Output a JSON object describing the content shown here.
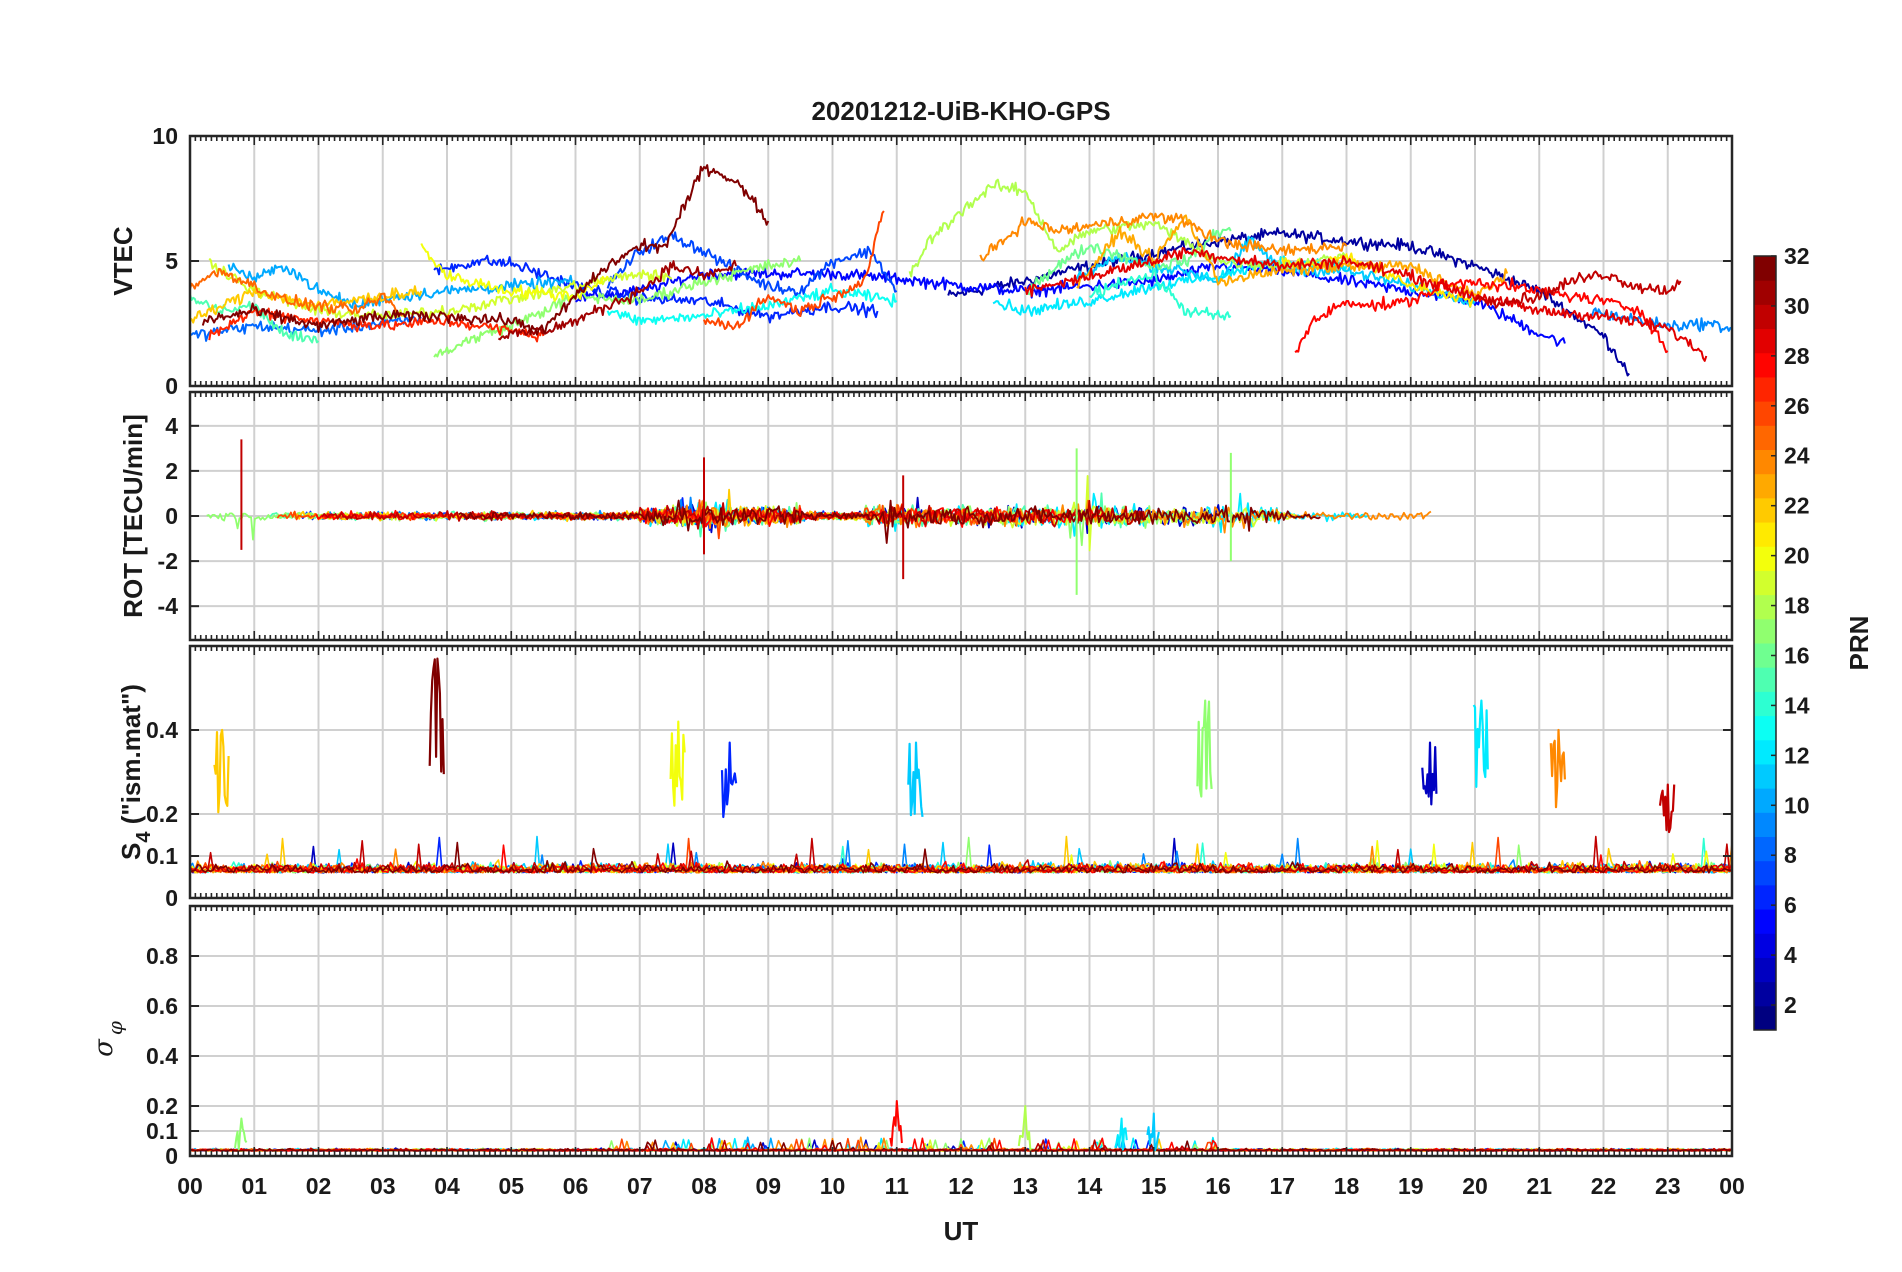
{
  "chart_data": {
    "type": "line",
    "title": "20201212-UiB-KHO-GPS",
    "xlabel": "UT",
    "x_ticks": [
      "00",
      "01",
      "02",
      "03",
      "04",
      "05",
      "06",
      "07",
      "08",
      "09",
      "10",
      "11",
      "12",
      "13",
      "14",
      "15",
      "16",
      "17",
      "18",
      "19",
      "20",
      "21",
      "22",
      "23",
      "00"
    ],
    "x_range_hours": [
      0,
      24
    ],
    "grid": true,
    "panels": [
      {
        "id": "vtec",
        "ylabel": "VTEC",
        "ylim": [
          0,
          10
        ],
        "yticks": [
          0,
          5,
          10
        ],
        "ytick_labels": [
          "0",
          "5",
          "10"
        ],
        "series": [
          {
            "prn": 2,
            "hours": [
              11.8,
              13,
              14,
              15,
              16,
              17,
              18,
              19,
              20,
              21,
              22,
              22.4
            ],
            "values": [
              3.6,
              4.2,
              4.8,
              5.3,
              5.8,
              6.1,
              5.8,
              5.6,
              4.8,
              3.8,
              2.0,
              0.5
            ]
          },
          {
            "prn": 5,
            "hours": [
              6.0,
              7,
              8,
              9,
              10,
              11,
              12,
              13,
              14,
              15,
              16,
              17,
              18,
              19,
              20,
              21,
              21.4
            ],
            "values": [
              3.5,
              3.8,
              4.5,
              4.5,
              4.5,
              4.3,
              4.0,
              3.8,
              4.0,
              4.2,
              4.8,
              4.6,
              4.2,
              3.8,
              3.4,
              2.1,
              1.7
            ]
          },
          {
            "prn": 6,
            "hours": [
              3.8,
              4.5,
              5,
              6,
              7,
              8,
              9,
              10,
              10.7
            ],
            "values": [
              4.6,
              5.0,
              4.9,
              4.0,
              3.5,
              3.4,
              2.8,
              3.2,
              3.0
            ]
          },
          {
            "prn": 7,
            "hours": [
              6.5,
              7,
              7.5,
              8,
              8.5,
              9,
              9.5,
              10,
              10.6,
              11
            ],
            "values": [
              4.0,
              5.4,
              6.0,
              5.4,
              4.6,
              4.0,
              3.8,
              5.0,
              5.4,
              3.8
            ]
          },
          {
            "prn": 8,
            "hours": [
              0.0,
              1,
              2,
              3,
              3.6
            ],
            "values": [
              2.0,
              2.4,
              2.2,
              2.5,
              2.7
            ]
          },
          {
            "prn": 9,
            "hours": [
              21.8,
              22,
              23,
              23.6,
              24
            ],
            "values": [
              3.0,
              2.9,
              2.4,
              2.5,
              2.3
            ]
          },
          {
            "prn": 10,
            "hours": [
              0.6,
              1,
              1.5,
              2,
              2.6,
              3,
              4,
              5,
              6
            ],
            "values": [
              4.8,
              4.3,
              4.8,
              3.8,
              3.2,
              3.5,
              3.8,
              4.0,
              4.2
            ]
          },
          {
            "prn": 11,
            "hours": [
              13.8,
              14,
              14.5,
              15,
              15.5,
              16,
              16.5,
              17,
              18,
              19,
              20
            ],
            "values": [
              4.2,
              4.6,
              5.2,
              4.8,
              4.6,
              4.2,
              5.8,
              4.7,
              4.6,
              4.0,
              3.4
            ]
          },
          {
            "prn": 12,
            "hours": [
              12.5,
              13,
              13.5,
              14,
              15,
              16,
              17,
              18
            ],
            "values": [
              3.4,
              3.0,
              3.2,
              3.4,
              4.0,
              4.4,
              5.0,
              4.8
            ]
          },
          {
            "prn": 13,
            "hours": [
              6.5,
              7,
              8,
              9,
              10,
              11
            ],
            "values": [
              3.0,
              2.6,
              2.8,
              3.2,
              3.8,
              3.4
            ]
          },
          {
            "prn": 14,
            "hours": [
              14.0,
              14.5,
              15,
              15.5,
              16,
              16.2
            ],
            "values": [
              3.6,
              4.2,
              4.4,
              3.0,
              2.8,
              2.8
            ]
          },
          {
            "prn": 15,
            "hours": [
              0.0,
              0.5,
              1,
              1.5,
              2
            ],
            "values": [
              3.5,
              3.0,
              3.2,
              2.0,
              1.8
            ]
          },
          {
            "prn": 16,
            "hours": [
              13.0,
              13.5,
              14,
              14.5,
              15,
              15.5,
              16,
              16.2
            ],
            "values": [
              3.8,
              4.8,
              5.6,
              5.2,
              4.8,
              5.0,
              6.2,
              6.2
            ]
          },
          {
            "prn": 17,
            "hours": [
              3.8,
              4.5,
              5,
              5.5,
              6,
              7,
              8,
              9,
              9.5
            ],
            "values": [
              1.2,
              2.0,
              2.4,
              3.0,
              3.6,
              3.4,
              4.2,
              4.8,
              5.0
            ]
          },
          {
            "prn": 18,
            "hours": [
              11.2,
              11.5,
              12,
              12.5,
              13,
              13.5,
              14,
              15,
              16,
              17,
              18
            ],
            "values": [
              4.4,
              5.8,
              7.0,
              8.0,
              7.8,
              5.4,
              6.2,
              6.5,
              5.0,
              4.8,
              5.2
            ]
          },
          {
            "prn": 19,
            "hours": [
              0.3,
              1,
              2,
              3,
              4,
              5,
              6,
              7,
              7.5
            ],
            "values": [
              5.0,
              3.8,
              3.0,
              2.8,
              3.0,
              3.5,
              4.0,
              4.5,
              4.3
            ]
          },
          {
            "prn": 20,
            "hours": [
              3.6,
              4,
              5,
              6,
              6.5
            ],
            "values": [
              5.6,
              4.4,
              3.8,
              3.6,
              4.4
            ]
          },
          {
            "prn": 21,
            "hours": [
              17.0,
              17.5,
              18,
              19,
              20
            ],
            "values": [
              5.0,
              4.8,
              5.2,
              4.0,
              3.4
            ]
          },
          {
            "prn": 22,
            "hours": [
              0.0,
              1,
              2,
              3,
              3.6
            ],
            "values": [
              2.6,
              3.8,
              3.2,
              3.6,
              3.8
            ]
          },
          {
            "prn": 23,
            "hours": [
              13.8,
              14.5,
              15,
              15.5,
              16,
              17,
              18,
              19,
              20,
              20.5
            ],
            "values": [
              4.0,
              6.2,
              5.0,
              6.8,
              4.2,
              4.6,
              4.8,
              4.8,
              3.6,
              4.5
            ]
          },
          {
            "prn": 24,
            "hours": [
              12.3,
              13,
              13.5,
              14,
              15,
              15.5,
              16,
              17,
              18
            ],
            "values": [
              5.0,
              6.6,
              6.2,
              6.4,
              6.8,
              6.6,
              5.8,
              5.4,
              5.6
            ]
          },
          {
            "prn": 25,
            "hours": [
              0.0,
              0.5,
              1,
              1.5,
              2,
              2.6,
              3,
              3.3
            ],
            "values": [
              4.0,
              4.6,
              4.0,
              3.4,
              3.2,
              3.0,
              3.6,
              2.8
            ]
          },
          {
            "prn": 26,
            "hours": [
              8.0,
              8.5,
              9,
              9.5,
              10,
              10.5,
              10.8
            ],
            "values": [
              2.6,
              2.4,
              3.6,
              3.0,
              3.6,
              4.2,
              7.0
            ]
          },
          {
            "prn": 27,
            "hours": [
              0.3,
              1,
              2,
              3,
              4,
              5,
              5.5
            ],
            "values": [
              2.0,
              3.0,
              2.6,
              2.4,
              2.6,
              2.2,
              2.0
            ]
          },
          {
            "prn": 28,
            "hours": [
              17.2,
              17.5,
              18,
              18.5,
              19,
              19.5,
              20,
              21,
              22,
              22.6,
              23
            ],
            "values": [
              1.4,
              2.6,
              3.4,
              3.2,
              3.4,
              4.0,
              4.2,
              3.8,
              3.4,
              3.0,
              1.4
            ]
          },
          {
            "prn": 29,
            "hours": [
              13.0,
              14,
              15,
              15.5,
              16,
              17,
              18,
              19,
              20,
              21,
              22,
              23,
              23.6
            ],
            "values": [
              3.8,
              4.4,
              5.0,
              5.4,
              5.2,
              4.8,
              5.0,
              4.4,
              3.6,
              3.0,
              2.8,
              2.3,
              1.2
            ]
          },
          {
            "prn": 30,
            "hours": [
              20.0,
              20.5,
              21,
              21.5,
              22,
              22.5,
              23,
              23.2
            ],
            "values": [
              3.5,
              3.4,
              3.6,
              4.2,
              4.5,
              4.0,
              3.8,
              4.2
            ]
          },
          {
            "prn": 31,
            "hours": [
              4.8,
              5.5,
              6,
              6.5,
              7,
              7.5,
              8,
              8.5
            ],
            "values": [
              2.0,
              2.2,
              2.6,
              3.2,
              3.8,
              4.8,
              4.4,
              4.8
            ]
          },
          {
            "prn": 32,
            "hours": [
              0.2,
              1,
              2,
              3,
              4,
              5,
              5.5,
              6,
              6.5,
              7,
              7.4,
              8,
              8.5,
              9
            ],
            "values": [
              2.6,
              3.0,
              2.4,
              2.8,
              2.8,
              2.6,
              2.2,
              3.6,
              4.8,
              5.6,
              5.6,
              8.8,
              8.2,
              6.6
            ]
          }
        ]
      },
      {
        "id": "rot",
        "ylabel": "ROT [TECU/min]",
        "ylim": [
          -5.5,
          5.5
        ],
        "yticks": [
          -4,
          -2,
          0,
          2,
          4
        ],
        "ytick_labels": [
          "-4",
          "-2",
          "0",
          "2",
          "4"
        ],
        "description_values": {
          "typical_amplitude": 0.4,
          "max": 3.4,
          "min": -3.5
        },
        "peak_events": [
          {
            "hour": 0.8,
            "min": -1.5,
            "max": 3.4
          },
          {
            "hour": 8.0,
            "min": -1.7,
            "max": 2.6
          },
          {
            "hour": 11.1,
            "min": -2.8,
            "max": 1.8
          },
          {
            "hour": 13.8,
            "min": -3.5,
            "max": 3.0
          },
          {
            "hour": 16.2,
            "min": -2.0,
            "max": 2.8
          }
        ]
      },
      {
        "id": "s4",
        "ylabel_main": "S",
        "ylabel_sub": "4",
        "ylabel_rest": " (\"ism.mat\")",
        "ylim": [
          0,
          0.6
        ],
        "yticks": [
          0,
          0.1,
          0.2,
          0.4
        ],
        "ytick_labels": [
          "0",
          "0.1",
          "0.2",
          "0.4"
        ],
        "baseline": 0.07,
        "peak_events": [
          {
            "hour": 0.5,
            "value": 0.4,
            "prn": 22
          },
          {
            "hour": 3.85,
            "value": 0.57,
            "prn": 32
          },
          {
            "hour": 7.6,
            "value": 0.42,
            "prn": 20
          },
          {
            "hour": 8.4,
            "value": 0.37,
            "prn": 6
          },
          {
            "hour": 11.3,
            "value": 0.37,
            "prn": 11
          },
          {
            "hour": 15.8,
            "value": 0.47,
            "prn": 17
          },
          {
            "hour": 19.3,
            "value": 0.37,
            "prn": 3
          },
          {
            "hour": 20.1,
            "value": 0.47,
            "prn": 12
          },
          {
            "hour": 21.3,
            "value": 0.4,
            "prn": 24
          },
          {
            "hour": 23.0,
            "value": 0.27,
            "prn": 30
          }
        ]
      },
      {
        "id": "sigphi",
        "ylabel_main": "σ",
        "ylabel_sub": "φ",
        "ylim": [
          0,
          1.0
        ],
        "yticks": [
          0,
          0.1,
          0.2,
          0.4,
          0.6,
          0.8
        ],
        "ytick_labels": [
          "0",
          "0.1",
          "0.2",
          "0.4",
          "0.6",
          "0.8"
        ],
        "baseline": 0.02,
        "peak_events": [
          {
            "hour": 0.8,
            "value": 0.15,
            "prn": 17
          },
          {
            "hour": 11.0,
            "value": 0.22,
            "prn": 28
          },
          {
            "hour": 13.0,
            "value": 0.2,
            "prn": 18
          },
          {
            "hour": 14.5,
            "value": 0.15,
            "prn": 12
          },
          {
            "hour": 15.0,
            "value": 0.17,
            "prn": 11
          }
        ]
      }
    ],
    "colorbar": {
      "label": "PRN",
      "colormap": "jet",
      "range": [
        1,
        32
      ],
      "ticks": [
        2,
        4,
        6,
        8,
        10,
        12,
        14,
        16,
        18,
        20,
        22,
        24,
        26,
        28,
        30,
        32
      ],
      "tick_labels": [
        "2",
        "4",
        "6",
        "8",
        "10",
        "12",
        "14",
        "16",
        "18",
        "20",
        "22",
        "24",
        "26",
        "28",
        "30",
        "32"
      ]
    }
  }
}
